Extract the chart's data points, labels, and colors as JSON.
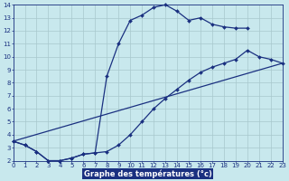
{
  "background_color": "#c8e8ed",
  "grid_color": "#a8c8cc",
  "line_color": "#1a3080",
  "xlabel": "Graphe des températures (°c)",
  "xlim": [
    0,
    23
  ],
  "ylim": [
    2,
    14
  ],
  "xticks": [
    0,
    1,
    2,
    3,
    4,
    5,
    6,
    7,
    8,
    9,
    10,
    11,
    12,
    13,
    14,
    15,
    16,
    17,
    18,
    19,
    20,
    21,
    22,
    23
  ],
  "yticks": [
    2,
    3,
    4,
    5,
    6,
    7,
    8,
    9,
    10,
    11,
    12,
    13,
    14
  ],
  "line1_x": [
    0,
    1,
    2,
    3,
    4,
    5,
    6,
    7,
    8,
    9,
    10,
    11,
    12,
    13,
    14,
    15,
    16,
    17,
    18,
    19,
    20
  ],
  "line1_y": [
    3.5,
    3.2,
    2.7,
    2.0,
    2.0,
    2.2,
    2.5,
    2.6,
    8.5,
    11.0,
    12.8,
    13.2,
    13.8,
    14.0,
    13.5,
    12.8,
    13.0,
    12.5,
    12.3,
    12.2,
    12.2
  ],
  "line2_x": [
    0,
    1,
    2,
    3,
    4,
    5,
    6,
    7,
    8,
    9,
    10,
    11,
    12,
    13,
    14,
    15,
    16,
    17,
    18,
    19,
    20,
    21,
    22,
    23
  ],
  "line2_y": [
    3.5,
    3.2,
    2.7,
    2.0,
    2.0,
    2.2,
    2.5,
    2.6,
    2.7,
    3.2,
    4.0,
    5.0,
    6.0,
    6.8,
    7.5,
    8.2,
    8.8,
    9.2,
    9.5,
    9.8,
    10.5,
    10.0,
    9.8,
    9.5
  ],
  "line3_x": [
    0,
    23
  ],
  "line3_y": [
    3.5,
    9.5
  ],
  "marker_size": 2.0,
  "line_width": 0.9,
  "tick_fontsize": 5.0,
  "xlabel_fontsize": 6.0
}
